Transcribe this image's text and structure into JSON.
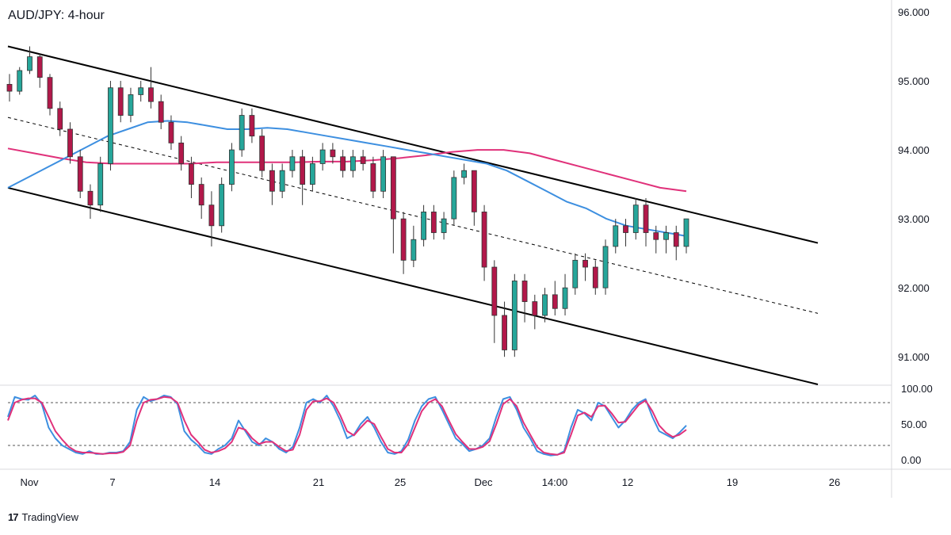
{
  "chart_title": "AUD/JPY: 4-hour",
  "brand": {
    "logo": "17",
    "name": "TradingView"
  },
  "chart_data": {
    "type": "candlestick",
    "symbol": "AUD/JPY",
    "timeframe": "4-hour",
    "price_axis": {
      "ticks": [
        "96.000",
        "95.000",
        "94.000",
        "93.000",
        "92.000",
        "91.000"
      ],
      "range": [
        90.6,
        96.0
      ]
    },
    "time_axis": {
      "labels": [
        "Nov",
        "7",
        "14",
        "21",
        "25",
        "Dec",
        "14:00",
        "12",
        "19",
        "26"
      ]
    },
    "stochastic": {
      "ticks": [
        "100.00",
        "50.00",
        "0.00"
      ],
      "levels": [
        80,
        20
      ],
      "range": [
        0,
        100
      ]
    },
    "colors": {
      "up": "#26a69a",
      "down": "#b2184a",
      "ma_fast": "#3d8fe0",
      "ma_slow": "#e0317a",
      "channel": "#000000",
      "stoch_k": "#3d8fe0",
      "stoch_d": "#e0317a"
    },
    "channel": {
      "upper": [
        [
          0,
          95.5
        ],
        [
          1.0,
          92.65
        ]
      ],
      "lower": [
        [
          0,
          93.45
        ],
        [
          1.0,
          90.6
        ]
      ],
      "mid": [
        [
          0,
          94.47
        ],
        [
          1.0,
          91.63
        ]
      ]
    },
    "ma_fast": [
      93.45,
      93.6,
      93.75,
      93.9,
      94.05,
      94.2,
      94.3,
      94.4,
      94.42,
      94.4,
      94.35,
      94.3,
      94.3,
      94.32,
      94.3,
      94.25,
      94.2,
      94.15,
      94.1,
      94.05,
      94.0,
      93.95,
      93.9,
      93.85,
      93.8,
      93.7,
      93.55,
      93.4,
      93.25,
      93.15,
      93.0,
      92.9,
      92.85,
      92.8,
      92.75
    ],
    "ma_slow": [
      94.02,
      93.95,
      93.88,
      93.82,
      93.8,
      93.8,
      93.8,
      93.8,
      93.82,
      93.82,
      93.82,
      93.82,
      93.83,
      93.83,
      93.85,
      93.88,
      93.92,
      93.97,
      94.0,
      94.0,
      93.95,
      93.85,
      93.75,
      93.65,
      93.55,
      93.45,
      93.4
    ],
    "candles": [
      [
        94.95,
        94.85,
        95.1,
        94.7
      ],
      [
        94.85,
        95.15,
        95.2,
        94.8
      ],
      [
        95.15,
        95.35,
        95.5,
        95.1
      ],
      [
        95.35,
        95.05,
        95.4,
        94.9
      ],
      [
        95.05,
        94.6,
        95.1,
        94.5
      ],
      [
        94.6,
        94.3,
        94.7,
        94.2
      ],
      [
        94.3,
        93.9,
        94.4,
        93.8
      ],
      [
        93.9,
        93.4,
        94.0,
        93.3
      ],
      [
        93.4,
        93.2,
        93.5,
        93.0
      ],
      [
        93.2,
        93.8,
        93.9,
        93.1
      ],
      [
        93.8,
        94.9,
        95.0,
        93.7
      ],
      [
        94.9,
        94.5,
        95.0,
        94.4
      ],
      [
        94.5,
        94.8,
        94.9,
        94.4
      ],
      [
        94.8,
        94.9,
        95.0,
        94.7
      ],
      [
        94.9,
        94.7,
        95.2,
        94.6
      ],
      [
        94.7,
        94.4,
        94.8,
        94.3
      ],
      [
        94.4,
        94.1,
        94.5,
        94.0
      ],
      [
        94.1,
        93.8,
        94.2,
        93.7
      ],
      [
        93.8,
        93.5,
        93.9,
        93.3
      ],
      [
        93.5,
        93.2,
        93.6,
        93.0
      ],
      [
        93.2,
        92.9,
        93.4,
        92.6
      ],
      [
        92.9,
        93.5,
        93.6,
        92.8
      ],
      [
        93.5,
        94.0,
        94.1,
        93.4
      ],
      [
        94.0,
        94.5,
        94.6,
        93.9
      ],
      [
        94.5,
        94.2,
        94.6,
        94.1
      ],
      [
        94.2,
        93.7,
        94.3,
        93.6
      ],
      [
        93.7,
        93.4,
        93.8,
        93.2
      ],
      [
        93.4,
        93.7,
        93.8,
        93.3
      ],
      [
        93.7,
        93.9,
        94.0,
        93.6
      ],
      [
        93.9,
        93.5,
        94.0,
        93.2
      ],
      [
        93.5,
        93.8,
        93.9,
        93.4
      ],
      [
        93.8,
        94.0,
        94.1,
        93.7
      ],
      [
        94.0,
        93.9,
        94.1,
        93.8
      ],
      [
        93.9,
        93.7,
        94.0,
        93.6
      ],
      [
        93.7,
        93.9,
        94.0,
        93.6
      ],
      [
        93.9,
        93.8,
        94.0,
        93.7
      ],
      [
        93.8,
        93.4,
        93.9,
        93.3
      ],
      [
        93.4,
        93.9,
        94.0,
        93.3
      ],
      [
        93.9,
        93.0,
        93.9,
        92.5
      ],
      [
        93.0,
        92.4,
        93.1,
        92.2
      ],
      [
        92.4,
        92.7,
        92.9,
        92.3
      ],
      [
        92.7,
        93.1,
        93.2,
        92.6
      ],
      [
        93.1,
        92.8,
        93.2,
        92.7
      ],
      [
        92.8,
        93.0,
        93.1,
        92.7
      ],
      [
        93.0,
        93.6,
        93.7,
        92.9
      ],
      [
        93.6,
        93.7,
        93.8,
        93.5
      ],
      [
        93.7,
        93.1,
        93.7,
        92.9
      ],
      [
        93.1,
        92.3,
        93.2,
        92.1
      ],
      [
        92.3,
        91.6,
        92.4,
        91.2
      ],
      [
        91.6,
        91.1,
        91.8,
        91.0
      ],
      [
        91.1,
        92.1,
        92.2,
        91.0
      ],
      [
        92.1,
        91.8,
        92.2,
        91.5
      ],
      [
        91.8,
        91.6,
        91.9,
        91.4
      ],
      [
        91.6,
        91.9,
        92.0,
        91.5
      ],
      [
        91.9,
        91.7,
        92.1,
        91.6
      ],
      [
        91.7,
        92.0,
        92.2,
        91.6
      ],
      [
        92.0,
        92.4,
        92.5,
        91.9
      ],
      [
        92.4,
        92.3,
        92.5,
        92.1
      ],
      [
        92.3,
        92.0,
        92.4,
        91.9
      ],
      [
        92.0,
        92.6,
        92.7,
        91.9
      ],
      [
        92.6,
        92.9,
        93.0,
        92.5
      ],
      [
        92.9,
        92.8,
        93.0,
        92.6
      ],
      [
        92.8,
        93.2,
        93.3,
        92.7
      ],
      [
        93.2,
        92.8,
        93.3,
        92.6
      ],
      [
        92.8,
        92.7,
        92.9,
        92.5
      ],
      [
        92.7,
        92.8,
        92.9,
        92.5
      ],
      [
        92.8,
        92.6,
        92.9,
        92.4
      ],
      [
        92.6,
        93.0,
        93.0,
        92.5
      ]
    ],
    "stoch_k": [
      60,
      88,
      85,
      84,
      90,
      78,
      45,
      30,
      20,
      15,
      10,
      8,
      12,
      8,
      8,
      10,
      10,
      12,
      25,
      70,
      88,
      82,
      85,
      90,
      88,
      78,
      40,
      28,
      20,
      10,
      8,
      15,
      20,
      30,
      55,
      40,
      25,
      20,
      30,
      25,
      15,
      10,
      18,
      45,
      80,
      85,
      80,
      90,
      75,
      55,
      30,
      35,
      50,
      60,
      45,
      25,
      10,
      8,
      12,
      28,
      55,
      75,
      85,
      88,
      70,
      50,
      30,
      22,
      12,
      15,
      20,
      30,
      60,
      85,
      88,
      70,
      45,
      30,
      12,
      8,
      6,
      7,
      12,
      45,
      70,
      65,
      55,
      80,
      75,
      60,
      45,
      55,
      70,
      80,
      85,
      60,
      40,
      35,
      30,
      38,
      48
    ],
    "stoch_d": [
      55,
      80,
      84,
      86,
      86,
      80,
      60,
      40,
      28,
      18,
      12,
      10,
      10,
      9,
      8,
      9,
      9,
      11,
      20,
      55,
      80,
      84,
      85,
      88,
      87,
      80,
      55,
      35,
      25,
      14,
      10,
      12,
      16,
      25,
      45,
      42,
      30,
      22,
      25,
      25,
      18,
      12,
      14,
      35,
      70,
      82,
      82,
      86,
      80,
      62,
      40,
      34,
      45,
      55,
      50,
      32,
      15,
      10,
      10,
      22,
      45,
      68,
      80,
      85,
      75,
      55,
      36,
      25,
      15,
      15,
      18,
      26,
      50,
      78,
      85,
      75,
      52,
      35,
      18,
      10,
      8,
      7,
      10,
      35,
      62,
      66,
      60,
      75,
      76,
      65,
      52,
      53,
      65,
      77,
      83,
      68,
      48,
      38,
      32,
      35,
      42
    ]
  }
}
